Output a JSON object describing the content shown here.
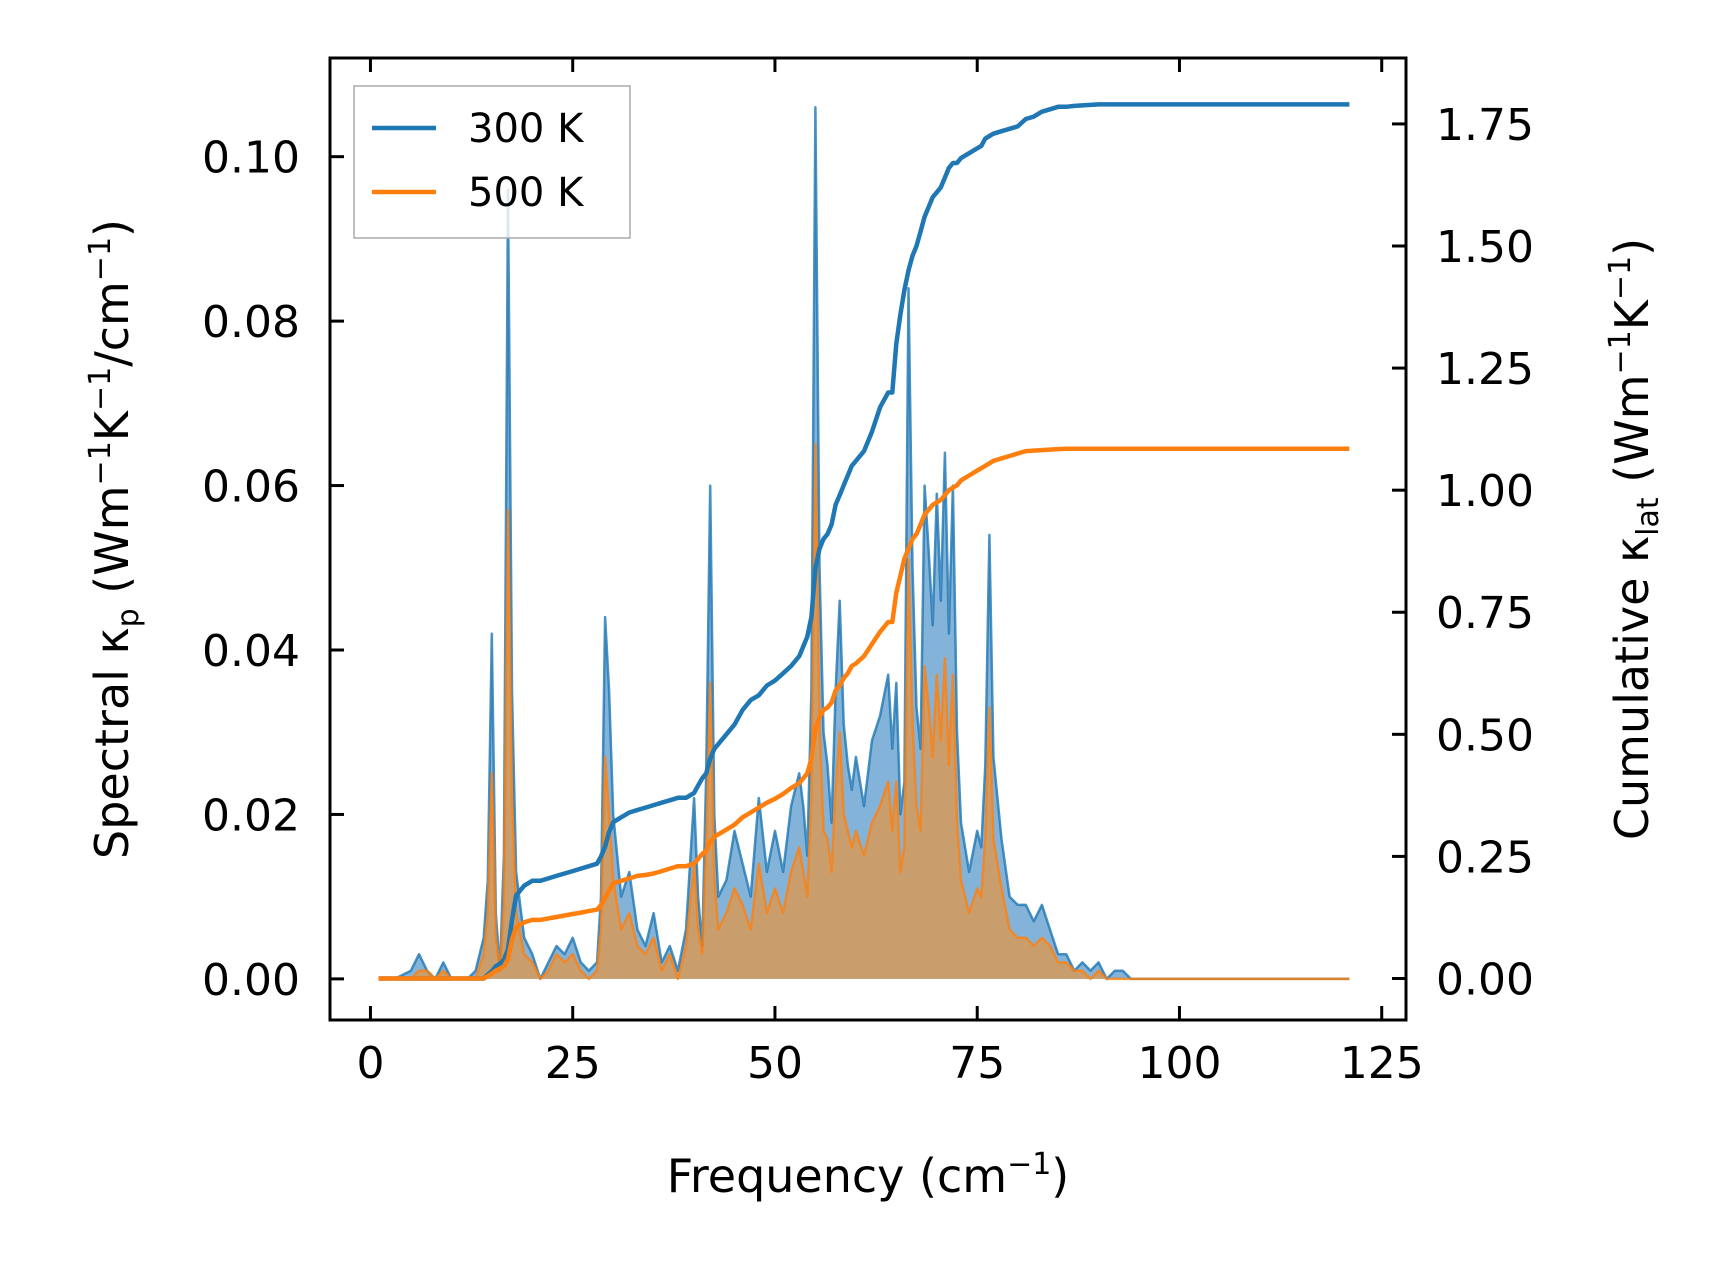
{
  "chart_data": {
    "type": "line",
    "xlabel": "Frequency (cm⁻¹)",
    "ylabel_left": "Spectral κₚ (Wm⁻¹K⁻¹/cm⁻¹)",
    "ylabel_right": "Cumulative κ_lat (Wm⁻¹K⁻¹)",
    "xlim": [
      -5,
      128
    ],
    "ylim_left": [
      -0.005,
      0.112
    ],
    "ylim_right": [
      -0.085,
      1.885
    ],
    "x_ticks": [
      "0",
      "25",
      "50",
      "75",
      "100",
      "125"
    ],
    "y_left_ticks": [
      "0.00",
      "0.02",
      "0.04",
      "0.06",
      "0.08",
      "0.10"
    ],
    "y_right_ticks": [
      "0.00",
      "0.25",
      "0.50",
      "0.75",
      "1.00",
      "1.25",
      "1.50",
      "1.75"
    ],
    "legend_position": "top-left",
    "colors": {
      "300K": "#1f77b4",
      "500K": "#ff7f0e",
      "300K_fill": "#6ea6d2",
      "500K_fill": "#d19b5f"
    },
    "spectral_x": [
      1,
      3,
      5,
      6,
      7,
      8,
      9,
      10,
      11,
      12,
      13,
      14,
      14.5,
      15,
      15.5,
      16,
      16.5,
      17,
      17.5,
      18,
      19,
      20,
      21,
      22,
      23,
      24,
      25,
      26,
      27,
      28,
      28.5,
      29,
      29.5,
      30,
      31,
      32,
      33,
      34,
      35,
      36,
      37,
      38,
      39,
      40,
      40.5,
      41,
      41.5,
      42,
      42.5,
      43,
      44,
      45,
      46,
      47,
      48,
      49,
      50,
      51,
      52,
      53,
      53.5,
      54,
      54.5,
      55,
      55.5,
      56,
      56.5,
      57,
      57.5,
      58,
      58.5,
      59,
      59.5,
      60,
      61,
      62,
      63,
      64,
      64.5,
      65,
      65.5,
      66,
      66.5,
      67,
      67.5,
      68,
      68.5,
      69,
      69.5,
      70,
      70.5,
      71,
      71.5,
      72,
      72.5,
      73,
      74,
      75,
      75.5,
      76,
      76.5,
      77,
      78,
      79,
      80,
      81,
      82,
      83,
      84,
      85,
      86,
      87,
      88,
      89,
      90,
      91,
      92,
      93,
      94,
      100,
      110,
      121
    ],
    "series": [
      {
        "name": "300 K",
        "spectral": [
          0,
          0,
          0.001,
          0.003,
          0.001,
          0,
          0.002,
          0,
          0,
          0,
          0.001,
          0.005,
          0.012,
          0.042,
          0.008,
          0.001,
          0.015,
          0.096,
          0.035,
          0.013,
          0.005,
          0.003,
          0,
          0.002,
          0.004,
          0.003,
          0.005,
          0.002,
          0.001,
          0.002,
          0.01,
          0.044,
          0.035,
          0.02,
          0.01,
          0.013,
          0.006,
          0.004,
          0.008,
          0.002,
          0.004,
          0.001,
          0.006,
          0.022,
          0.01,
          0.004,
          0.025,
          0.06,
          0.02,
          0.01,
          0.012,
          0.018,
          0.014,
          0.01,
          0.022,
          0.013,
          0.018,
          0.013,
          0.021,
          0.025,
          0.021,
          0.015,
          0.035,
          0.106,
          0.05,
          0.03,
          0.026,
          0.019,
          0.035,
          0.046,
          0.031,
          0.026,
          0.023,
          0.027,
          0.021,
          0.029,
          0.032,
          0.037,
          0.028,
          0.036,
          0.02,
          0.024,
          0.084,
          0.05,
          0.033,
          0.028,
          0.06,
          0.052,
          0.043,
          0.059,
          0.046,
          0.064,
          0.042,
          0.06,
          0.03,
          0.019,
          0.013,
          0.018,
          0.016,
          0.026,
          0.054,
          0.027,
          0.017,
          0.01,
          0.009,
          0.009,
          0.007,
          0.009,
          0.006,
          0.003,
          0.003,
          0.001,
          0.002,
          0.001,
          0.002,
          0,
          0.001,
          0.001,
          0,
          0,
          0,
          0,
          0
        ],
        "cumulative": [
          0,
          0,
          0,
          0,
          0,
          0,
          0,
          0,
          0,
          0,
          0,
          0,
          0.008,
          0.015,
          0.025,
          0.03,
          0.038,
          0.06,
          0.12,
          0.17,
          0.19,
          0.2,
          0.2,
          0.205,
          0.21,
          0.215,
          0.22,
          0.225,
          0.23,
          0.235,
          0.25,
          0.27,
          0.3,
          0.32,
          0.33,
          0.34,
          0.345,
          0.35,
          0.355,
          0.36,
          0.365,
          0.37,
          0.37,
          0.38,
          0.395,
          0.41,
          0.42,
          0.45,
          0.47,
          0.48,
          0.5,
          0.52,
          0.55,
          0.57,
          0.58,
          0.6,
          0.61,
          0.625,
          0.64,
          0.66,
          0.68,
          0.7,
          0.74,
          0.84,
          0.88,
          0.9,
          0.91,
          0.93,
          0.97,
          0.99,
          1.01,
          1.03,
          1.05,
          1.06,
          1.08,
          1.12,
          1.17,
          1.2,
          1.2,
          1.3,
          1.36,
          1.41,
          1.45,
          1.48,
          1.5,
          1.53,
          1.56,
          1.58,
          1.6,
          1.61,
          1.62,
          1.64,
          1.66,
          1.67,
          1.67,
          1.68,
          1.69,
          1.7,
          1.705,
          1.72,
          1.725,
          1.73,
          1.735,
          1.74,
          1.745,
          1.76,
          1.765,
          1.775,
          1.78,
          1.785,
          1.785,
          1.787,
          1.788,
          1.789,
          1.79,
          1.79,
          1.79,
          1.79,
          1.79,
          1.79,
          1.79,
          1.79
        ]
      },
      {
        "name": "500 K",
        "spectral": [
          0,
          0,
          0,
          0.001,
          0.001,
          0,
          0.001,
          0,
          0,
          0,
          0,
          0.003,
          0.008,
          0.025,
          0.005,
          0.001,
          0.009,
          0.057,
          0.022,
          0.008,
          0.003,
          0.002,
          0,
          0.001,
          0.003,
          0.002,
          0.003,
          0.001,
          0,
          0.001,
          0.006,
          0.027,
          0.02,
          0.012,
          0.006,
          0.008,
          0.004,
          0.003,
          0.005,
          0.001,
          0.003,
          0,
          0.004,
          0.014,
          0.006,
          0.003,
          0.016,
          0.036,
          0.012,
          0.006,
          0.008,
          0.011,
          0.009,
          0.006,
          0.014,
          0.008,
          0.011,
          0.008,
          0.013,
          0.016,
          0.013,
          0.01,
          0.022,
          0.065,
          0.031,
          0.018,
          0.017,
          0.013,
          0.023,
          0.03,
          0.02,
          0.018,
          0.016,
          0.018,
          0.015,
          0.019,
          0.021,
          0.024,
          0.018,
          0.024,
          0.013,
          0.016,
          0.051,
          0.031,
          0.021,
          0.018,
          0.038,
          0.033,
          0.027,
          0.037,
          0.029,
          0.039,
          0.026,
          0.037,
          0.019,
          0.012,
          0.008,
          0.011,
          0.01,
          0.017,
          0.033,
          0.017,
          0.011,
          0.006,
          0.005,
          0.005,
          0.004,
          0.005,
          0.004,
          0.002,
          0.002,
          0.001,
          0.001,
          0,
          0.001,
          0,
          0,
          0,
          0,
          0,
          0,
          0,
          0
        ],
        "cumulative": [
          0,
          0,
          0,
          0,
          0,
          0,
          0,
          0,
          0,
          0,
          0,
          0,
          0.005,
          0.01,
          0.016,
          0.02,
          0.025,
          0.04,
          0.08,
          0.105,
          0.115,
          0.12,
          0.12,
          0.123,
          0.126,
          0.129,
          0.132,
          0.135,
          0.138,
          0.141,
          0.15,
          0.165,
          0.18,
          0.195,
          0.2,
          0.205,
          0.21,
          0.212,
          0.215,
          0.22,
          0.225,
          0.23,
          0.23,
          0.235,
          0.245,
          0.255,
          0.262,
          0.28,
          0.29,
          0.295,
          0.305,
          0.315,
          0.33,
          0.34,
          0.35,
          0.36,
          0.368,
          0.378,
          0.39,
          0.4,
          0.41,
          0.42,
          0.45,
          0.51,
          0.535,
          0.55,
          0.555,
          0.565,
          0.59,
          0.6,
          0.615,
          0.625,
          0.64,
          0.645,
          0.66,
          0.685,
          0.71,
          0.73,
          0.73,
          0.79,
          0.825,
          0.86,
          0.88,
          0.9,
          0.91,
          0.93,
          0.95,
          0.96,
          0.97,
          0.975,
          0.98,
          0.99,
          1.0,
          1.005,
          1.01,
          1.02,
          1.03,
          1.04,
          1.045,
          1.05,
          1.055,
          1.06,
          1.065,
          1.07,
          1.075,
          1.08,
          1.081,
          1.082,
          1.083,
          1.084,
          1.085,
          1.085,
          1.085,
          1.085,
          1.085,
          1.085,
          1.085,
          1.085,
          1.085,
          1.085,
          1.085,
          1.085
        ]
      }
    ]
  }
}
